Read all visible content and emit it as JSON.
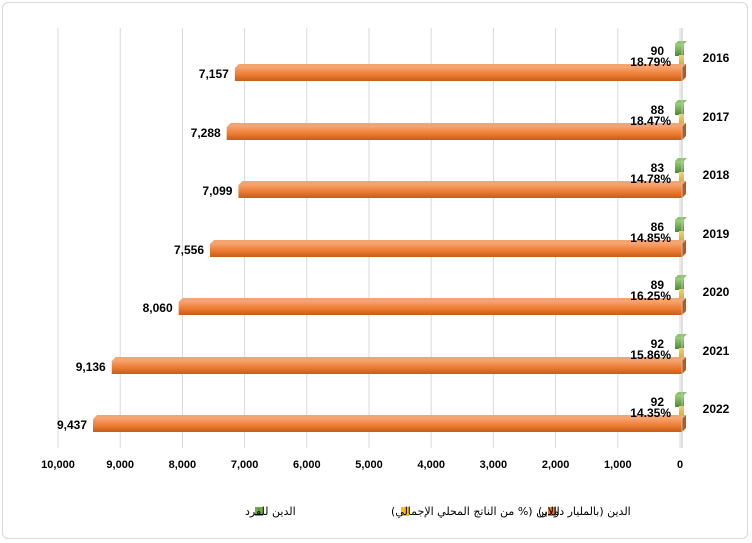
{
  "chart_data": {
    "type": "bar",
    "orientation": "horizontal",
    "x_axis_reversed": true,
    "categories": [
      "2016",
      "2017",
      "2018",
      "2019",
      "2020",
      "2021",
      "2022"
    ],
    "series": [
      {
        "name": "الدين (بالمليار دولار)",
        "color": "#ed7d31",
        "values": [
          7157,
          7288,
          7099,
          7556,
          8060,
          9136,
          9437
        ],
        "labels": [
          "7,157",
          "7,288",
          "7,099",
          "7,556",
          "8,060",
          "9,136",
          "9,437"
        ]
      },
      {
        "name": "الدين (% من الناتج المحلي الإجمالي)",
        "color": "#ffc000",
        "values": [
          18.79,
          18.47,
          14.78,
          14.85,
          16.25,
          15.86,
          14.35
        ],
        "labels": [
          "18.79%",
          "18.47%",
          "14.78%",
          "14.85%",
          "16.25%",
          "15.86%",
          "14.35%"
        ]
      },
      {
        "name": "الدين للفرد",
        "color": "#70ad47",
        "values": [
          90,
          88,
          83,
          86,
          89,
          92,
          92
        ],
        "labels": [
          "90",
          "88",
          "83",
          "86",
          "89",
          "92",
          "92"
        ]
      }
    ],
    "xlim": [
      0,
      10000
    ],
    "xticks": [
      "0",
      "1,000",
      "2,000",
      "3,000",
      "4,000",
      "5,000",
      "6,000",
      "7,000",
      "8,000",
      "9,000",
      "10,000"
    ],
    "grid": true,
    "legend_position": "bottom"
  }
}
